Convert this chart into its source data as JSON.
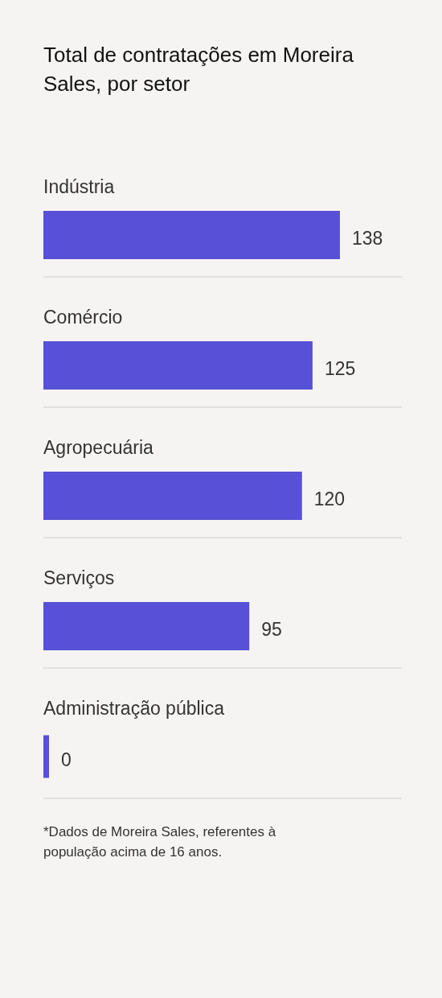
{
  "chart_data": {
    "type": "bar",
    "orientation": "horizontal",
    "title": "Total de contratações em Moreira Sales, por setor",
    "categories": [
      "Indústria",
      "Comércio",
      "Agropecuária",
      "Serviços",
      "Administração pública"
    ],
    "values": [
      138,
      125,
      120,
      95,
      0
    ],
    "color": "#5850d6",
    "data_labels": true,
    "annotations": [
      "*Dados de Moreira Sales, referentes à população acima de 16 anos."
    ]
  }
}
